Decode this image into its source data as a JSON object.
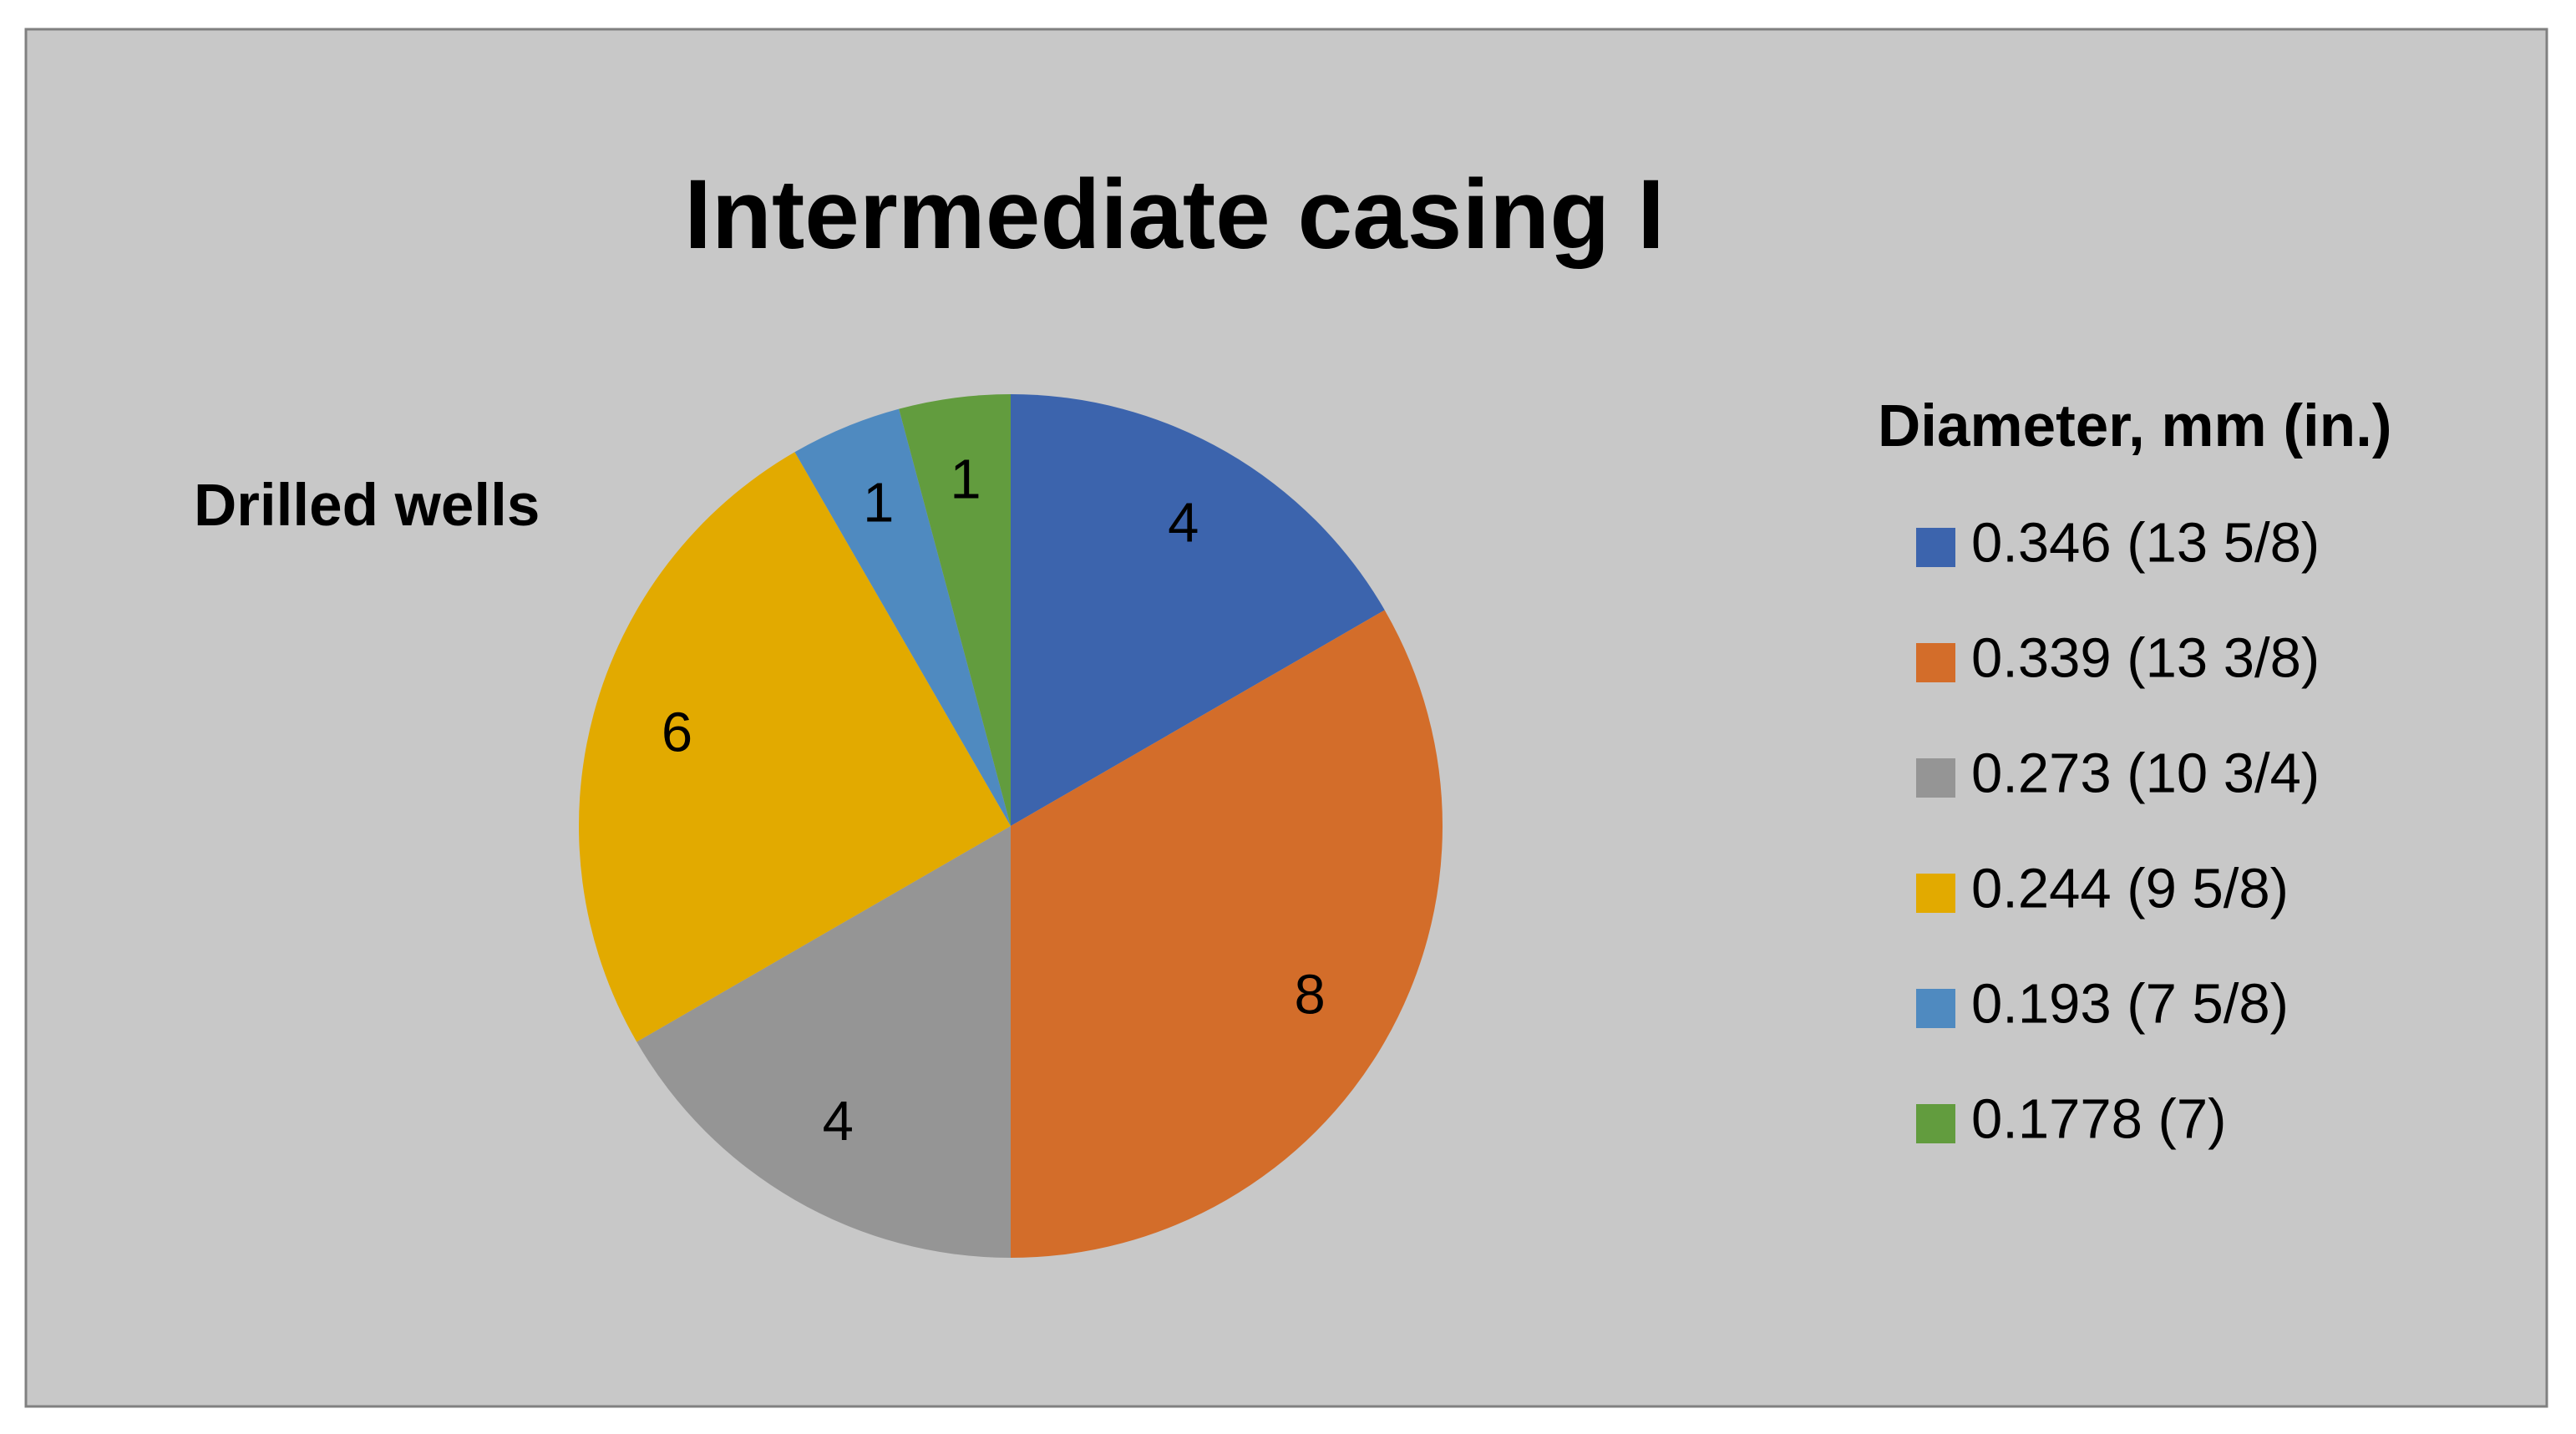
{
  "chart_data": {
    "type": "pie",
    "title": "Intermediate casing I",
    "series_label": "Drilled wells",
    "legend_title": "Diameter, mm (in.)",
    "legend_position": "right",
    "categories": [
      "0.346 (13 5/8)",
      "0.339 (13 3/8)",
      "0.273 (10 3/4)",
      "0.244 (9 5/8)",
      "0.193 (7 5/8)",
      "0.1778 (7)"
    ],
    "values": [
      4,
      8,
      4,
      6,
      1,
      1
    ],
    "colors": [
      "#3c64ad",
      "#d36d2a",
      "#959595",
      "#e2aa00",
      "#4f8ac0",
      "#629c3e"
    ]
  }
}
